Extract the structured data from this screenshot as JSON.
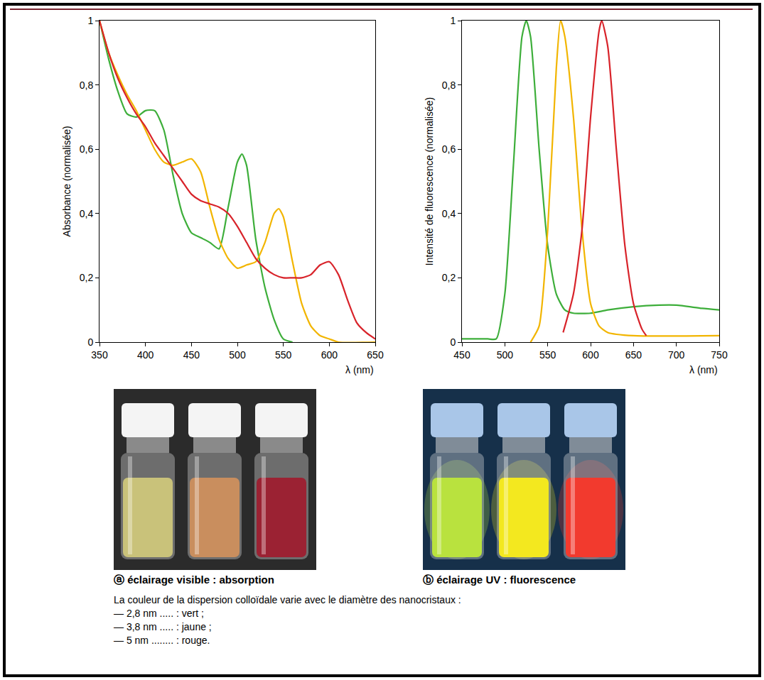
{
  "chart_data": [
    {
      "type": "line",
      "y_label": "Absorbance (normalisée)",
      "x_label": "λ (nm)",
      "xlim": [
        350,
        650
      ],
      "xticks": [
        350,
        400,
        450,
        500,
        550,
        600,
        650
      ],
      "ylim": [
        0,
        1
      ],
      "yticks": [
        0,
        {
          "value": 0.2,
          "label": "0,2"
        },
        {
          "value": 0.4,
          "label": "0,4"
        },
        {
          "value": 0.6,
          "label": "0,6"
        },
        {
          "value": 0.8,
          "label": "0,8"
        },
        1
      ],
      "grid": false,
      "series": [
        {
          "color": "#3dae3a",
          "x": [
            350,
            360,
            370,
            380,
            390,
            400,
            410,
            420,
            430,
            440,
            450,
            460,
            470,
            480,
            490,
            500,
            505,
            510,
            520,
            530,
            540,
            550,
            560
          ],
          "values": [
            1,
            0.88,
            0.78,
            0.71,
            0.7,
            0.72,
            0.72,
            0.66,
            0.52,
            0.4,
            0.34,
            0.325,
            0.31,
            0.29,
            0.42,
            0.56,
            0.585,
            0.55,
            0.32,
            0.17,
            0.07,
            0.01,
            0
          ]
        },
        {
          "color": "#f2b500",
          "x": [
            350,
            360,
            370,
            380,
            390,
            400,
            410,
            420,
            430,
            440,
            450,
            460,
            470,
            480,
            490,
            500,
            510,
            520,
            530,
            540,
            545,
            550,
            560,
            570,
            580,
            590,
            600,
            610,
            650
          ],
          "values": [
            1,
            0.9,
            0.83,
            0.77,
            0.72,
            0.66,
            0.6,
            0.56,
            0.55,
            0.56,
            0.57,
            0.53,
            0.42,
            0.32,
            0.26,
            0.23,
            0.24,
            0.25,
            0.31,
            0.4,
            0.415,
            0.39,
            0.25,
            0.12,
            0.05,
            0.02,
            0.01,
            0,
            0
          ]
        },
        {
          "color": "#d8232a",
          "x": [
            350,
            360,
            370,
            380,
            390,
            400,
            410,
            420,
            430,
            440,
            450,
            460,
            470,
            480,
            490,
            500,
            510,
            520,
            530,
            540,
            550,
            560,
            570,
            580,
            590,
            600,
            610,
            620,
            630,
            640,
            650
          ],
          "values": [
            1,
            0.9,
            0.82,
            0.76,
            0.71,
            0.67,
            0.62,
            0.58,
            0.54,
            0.5,
            0.46,
            0.44,
            0.43,
            0.42,
            0.4,
            0.36,
            0.31,
            0.26,
            0.23,
            0.21,
            0.2,
            0.2,
            0.2,
            0.21,
            0.24,
            0.25,
            0.21,
            0.13,
            0.06,
            0.03,
            0.01
          ]
        }
      ]
    },
    {
      "type": "line",
      "y_label": "Intensité de fluorescence (normalisée)",
      "x_label": "λ (nm)",
      "xlim": [
        450,
        750
      ],
      "xticks": [
        450,
        500,
        550,
        600,
        650,
        700,
        750
      ],
      "ylim": [
        0,
        1
      ],
      "yticks": [
        0,
        {
          "value": 0.2,
          "label": "0,2"
        },
        {
          "value": 0.4,
          "label": "0,4"
        },
        {
          "value": 0.6,
          "label": "0,6"
        },
        {
          "value": 0.8,
          "label": "0,8"
        },
        1
      ],
      "grid": false,
      "series": [
        {
          "color": "#3dae3a",
          "x": [
            450,
            480,
            490,
            500,
            510,
            520,
            525,
            530,
            540,
            550,
            560,
            570,
            580,
            600,
            620,
            650,
            680,
            700,
            730,
            750
          ],
          "values": [
            0.01,
            0.01,
            0.01,
            0.15,
            0.55,
            0.95,
            1,
            0.95,
            0.6,
            0.3,
            0.15,
            0.1,
            0.09,
            0.09,
            0.1,
            0.11,
            0.115,
            0.115,
            0.105,
            0.1
          ]
        },
        {
          "color": "#f2b500",
          "x": [
            530,
            540,
            550,
            560,
            565,
            570,
            580,
            590,
            600,
            610,
            620,
            650,
            750
          ],
          "values": [
            0,
            0.05,
            0.35,
            0.85,
            1,
            0.95,
            0.7,
            0.35,
            0.12,
            0.05,
            0.03,
            0.02,
            0.02
          ]
        },
        {
          "color": "#d8232a",
          "x": [
            568,
            580,
            590,
            600,
            610,
            613,
            620,
            630,
            640,
            650,
            660,
            665
          ],
          "values": [
            0.03,
            0.15,
            0.35,
            0.7,
            0.97,
            1,
            0.92,
            0.6,
            0.3,
            0.12,
            0.04,
            0.02
          ]
        }
      ]
    }
  ],
  "photos": [
    {
      "caption": "ⓐ éclairage visible : absorption"
    },
    {
      "caption": "ⓑ éclairage UV : fluorescence"
    }
  ],
  "note": {
    "text": "La couleur de la dispersion colloïdale varie avec le diamètre des nanocristaux :",
    "items": [
      "— 2,8 nm ..... : vert ;",
      "— 3,8 nm ..... : jaune ;",
      "— 5 nm ........ : rouge."
    ]
  }
}
